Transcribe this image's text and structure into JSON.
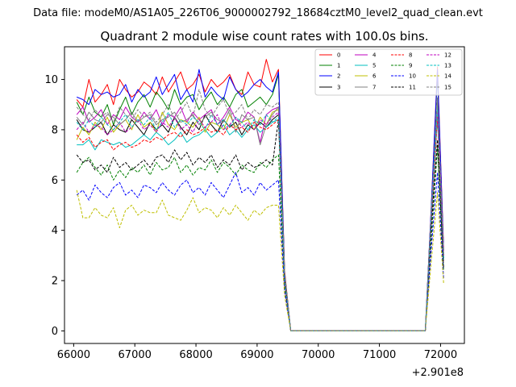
{
  "chart_data": {
    "type": "line",
    "suptitle": "Data file: modeM0/AS1A05_226T06_9000002792_18684cztM0_level2_quad_clean.evt",
    "title": "Quadrant 2 module wise count rates with 100.0s bins.",
    "xlabel": "",
    "ylabel": "",
    "x_offset_label": "+2.901e8",
    "xlim": [
      65850,
      72390
    ],
    "ylim": [
      -0.5,
      11.3
    ],
    "xticks": [
      66000,
      67000,
      68000,
      69000,
      70000,
      71000,
      72000
    ],
    "xtick_labels": [
      "66000",
      "67000",
      "68000",
      "69000",
      "70000",
      "71000",
      "72000"
    ],
    "yticks": [
      0,
      2,
      4,
      6,
      8,
      10
    ],
    "ytick_labels": [
      "0",
      "2",
      "4",
      "6",
      "8",
      "10"
    ],
    "legend_location": "upper right",
    "x": [
      66050,
      66150,
      66250,
      66350,
      66450,
      66550,
      66650,
      66750,
      66850,
      66950,
      67050,
      67150,
      67250,
      67350,
      67450,
      67550,
      67650,
      67750,
      67850,
      67950,
      68050,
      68150,
      68250,
      68350,
      68450,
      68550,
      68650,
      68750,
      68850,
      68950,
      69050,
      69150,
      69250,
      69350,
      69450,
      69550,
      69650,
      69750,
      69850,
      69950,
      70050,
      70150,
      70250,
      70350,
      70450,
      70550,
      70650,
      70750,
      70850,
      70950,
      71050,
      71150,
      71250,
      71350,
      71450,
      71550,
      71650,
      71750,
      71850,
      71950,
      72050
    ],
    "series": [
      {
        "name": "0",
        "color": "#ff0000",
        "dash": "solid",
        "values": [
          9.2,
          8.9,
          10.0,
          9.1,
          9.4,
          9.8,
          9.0,
          10.0,
          9.6,
          9.3,
          9.5,
          9.9,
          9.7,
          9.4,
          10.1,
          9.5,
          9.9,
          10.3,
          9.6,
          9.8,
          10.2,
          9.5,
          10.0,
          9.7,
          9.9,
          10.2,
          9.6,
          9.4,
          10.3,
          9.8,
          9.7,
          10.8,
          9.9,
          10.4,
          2.4,
          0,
          0,
          0,
          0,
          0,
          0,
          0,
          0,
          0,
          0,
          0,
          0,
          0,
          0,
          0,
          0,
          0,
          0,
          0,
          0,
          0,
          0,
          0,
          5.0,
          10.5,
          3.3
        ]
      },
      {
        "name": "1",
        "color": "#008000",
        "dash": "solid",
        "values": [
          9.1,
          8.6,
          9.3,
          8.7,
          8.5,
          9.0,
          8.2,
          8.8,
          9.3,
          8.6,
          9.1,
          9.4,
          8.9,
          9.5,
          9.2,
          8.8,
          9.6,
          9.0,
          9.3,
          9.4,
          8.8,
          9.2,
          9.5,
          9.0,
          9.3,
          8.9,
          9.4,
          9.6,
          8.9,
          9.1,
          9.3,
          9.0,
          9.4,
          10.2,
          2.3,
          0,
          0,
          0,
          0,
          0,
          0,
          0,
          0,
          0,
          0,
          0,
          0,
          0,
          0,
          0,
          0,
          0,
          0,
          0,
          0,
          0,
          0,
          0,
          4.9,
          10.2,
          3.2
        ]
      },
      {
        "name": "2",
        "color": "#0000ff",
        "dash": "solid",
        "values": [
          9.3,
          9.2,
          9.0,
          9.6,
          9.4,
          9.5,
          9.3,
          9.4,
          9.8,
          9.1,
          9.6,
          9.3,
          9.5,
          10.1,
          9.4,
          9.8,
          10.2,
          9.2,
          9.6,
          9.1,
          10.4,
          9.3,
          9.7,
          9.4,
          9.2,
          10.1,
          9.6,
          9.3,
          9.5,
          9.8,
          10.0,
          9.7,
          9.5,
          10.3,
          2.3,
          0,
          0,
          0,
          0,
          0,
          0,
          0,
          0,
          0,
          0,
          0,
          0,
          0,
          0,
          0,
          0,
          0,
          0,
          0,
          0,
          0,
          0,
          0,
          5.0,
          10.4,
          3.2
        ]
      },
      {
        "name": "3",
        "color": "#000000",
        "dash": "solid",
        "values": [
          8.4,
          8.0,
          7.9,
          8.1,
          8.3,
          7.8,
          8.2,
          8.0,
          7.9,
          8.4,
          8.1,
          7.8,
          8.3,
          8.0,
          8.2,
          7.9,
          8.5,
          8.1,
          7.8,
          8.3,
          8.0,
          8.6,
          8.2,
          7.9,
          8.4,
          8.1,
          8.3,
          7.8,
          8.2,
          8.0,
          8.3,
          8.1,
          8.4,
          8.6,
          2.1,
          0,
          0,
          0,
          0,
          0,
          0,
          0,
          0,
          0,
          0,
          0,
          0,
          0,
          0,
          0,
          0,
          0,
          0,
          0,
          0,
          0,
          0,
          0,
          4.5,
          8.7,
          2.9
        ]
      },
      {
        "name": "4",
        "color": "#bf00bf",
        "dash": "solid",
        "values": [
          8.6,
          8.9,
          8.3,
          8.5,
          8.8,
          8.2,
          8.6,
          8.4,
          8.9,
          8.5,
          8.3,
          8.7,
          8.4,
          8.8,
          8.2,
          8.6,
          8.5,
          8.9,
          8.3,
          8.7,
          8.4,
          8.6,
          8.8,
          8.2,
          8.5,
          8.9,
          8.4,
          8.3,
          8.7,
          8.5,
          7.5,
          8.6,
          8.8,
          8.9,
          2.2,
          0,
          0,
          0,
          0,
          0,
          0,
          0,
          0,
          0,
          0,
          0,
          0,
          0,
          0,
          0,
          0,
          0,
          0,
          0,
          0,
          0,
          0,
          0,
          4.7,
          9.0,
          3.0
        ]
      },
      {
        "name": "5",
        "color": "#00bfbf",
        "dash": "solid",
        "values": [
          7.4,
          7.4,
          7.6,
          7.2,
          7.6,
          7.5,
          7.4,
          7.5,
          7.3,
          7.4,
          7.6,
          7.8,
          7.6,
          7.9,
          7.7,
          7.4,
          7.6,
          7.9,
          7.5,
          7.7,
          7.8,
          8.0,
          7.7,
          7.9,
          8.2,
          7.8,
          8.0,
          7.7,
          8.0,
          8.2,
          7.9,
          8.1,
          8.3,
          8.4,
          2.1,
          0,
          0,
          0,
          0,
          0,
          0,
          0,
          0,
          0,
          0,
          0,
          0,
          0,
          0,
          0,
          0,
          0,
          0,
          0,
          0,
          0,
          0,
          0,
          4.4,
          8.5,
          2.8
        ]
      },
      {
        "name": "6",
        "color": "#bfbf00",
        "dash": "solid",
        "values": [
          7.6,
          8.1,
          7.8,
          8.3,
          8.0,
          8.5,
          7.9,
          8.2,
          8.4,
          8.0,
          8.6,
          8.1,
          8.3,
          7.9,
          8.7,
          8.2,
          8.0,
          8.4,
          8.3,
          8.1,
          8.5,
          7.9,
          8.3,
          8.2,
          8.0,
          8.6,
          8.1,
          8.3,
          8.4,
          8.0,
          8.5,
          8.2,
          8.7,
          8.8,
          2.2,
          0,
          0,
          0,
          0,
          0,
          0,
          0,
          0,
          0,
          0,
          0,
          0,
          0,
          0,
          0,
          0,
          0,
          0,
          0,
          0,
          0,
          0,
          0,
          4.6,
          8.9,
          3.0
        ]
      },
      {
        "name": "7",
        "color": "#808080",
        "dash": "solid",
        "values": [
          8.5,
          8.2,
          8.7,
          8.4,
          8.3,
          8.6,
          8.5,
          8.2,
          8.4,
          8.7,
          8.3,
          8.5,
          8.6,
          8.2,
          8.4,
          8.5,
          8.7,
          8.3,
          8.4,
          8.6,
          8.2,
          8.5,
          8.7,
          8.4,
          8.3,
          8.8,
          7.9,
          8.6,
          8.4,
          8.5,
          7.4,
          8.2,
          8.6,
          8.9,
          2.2,
          0,
          0,
          0,
          0,
          0,
          0,
          0,
          0,
          0,
          0,
          0,
          0,
          0,
          0,
          0,
          0,
          0,
          0,
          0,
          0,
          0,
          0,
          0,
          4.7,
          9.2,
          3.0
        ]
      },
      {
        "name": "8",
        "color": "#ff0000",
        "dash": "dashed",
        "values": [
          7.8,
          7.5,
          7.7,
          7.3,
          7.5,
          7.6,
          7.2,
          7.4,
          7.5,
          7.3,
          7.4,
          7.6,
          7.5,
          7.7,
          7.6,
          7.8,
          7.9,
          7.7,
          8.0,
          7.8,
          7.9,
          8.1,
          7.9,
          8.0,
          7.8,
          8.2,
          8.0,
          8.1,
          7.9,
          8.3,
          8.1,
          8.0,
          8.2,
          8.4,
          2.0,
          0,
          0,
          0,
          0,
          0,
          0,
          0,
          0,
          0,
          0,
          0,
          0,
          0,
          0,
          0,
          0,
          0,
          0,
          0,
          0,
          0,
          0,
          0,
          4.4,
          8.5,
          2.8
        ]
      },
      {
        "name": "9",
        "color": "#008000",
        "dash": "dashed",
        "values": [
          6.3,
          6.7,
          6.9,
          6.5,
          6.2,
          6.6,
          6.0,
          6.4,
          6.1,
          6.5,
          6.3,
          6.6,
          6.2,
          6.7,
          6.4,
          6.5,
          6.9,
          6.3,
          6.6,
          6.2,
          6.5,
          6.4,
          6.8,
          6.3,
          6.7,
          6.5,
          6.2,
          6.6,
          6.4,
          6.3,
          6.7,
          6.5,
          6.8,
          7.0,
          1.8,
          0,
          0,
          0,
          0,
          0,
          0,
          0,
          0,
          0,
          0,
          0,
          0,
          0,
          0,
          0,
          0,
          0,
          0,
          0,
          0,
          0,
          0,
          0,
          3.7,
          7.3,
          2.4
        ]
      },
      {
        "name": "10",
        "color": "#0000ff",
        "dash": "dashed",
        "values": [
          5.4,
          5.6,
          5.2,
          5.8,
          5.5,
          5.3,
          5.7,
          5.9,
          5.4,
          5.6,
          5.3,
          5.8,
          5.7,
          5.5,
          5.9,
          5.6,
          5.4,
          5.8,
          6.0,
          5.5,
          5.7,
          5.4,
          5.9,
          5.6,
          5.3,
          5.8,
          6.3,
          5.5,
          5.7,
          5.4,
          5.9,
          5.6,
          5.8,
          6.0,
          1.6,
          0,
          0,
          0,
          0,
          0,
          0,
          0,
          0,
          0,
          0,
          0,
          0,
          0,
          0,
          0,
          0,
          0,
          0,
          0,
          0,
          0,
          0,
          0,
          3.3,
          6.3,
          2.1
        ]
      },
      {
        "name": "11",
        "color": "#000000",
        "dash": "dashed",
        "values": [
          7.0,
          6.7,
          6.8,
          6.4,
          6.6,
          6.3,
          6.9,
          6.5,
          6.7,
          6.4,
          6.6,
          6.8,
          6.5,
          6.9,
          7.0,
          6.7,
          7.2,
          6.8,
          7.1,
          6.6,
          6.9,
          6.7,
          7.0,
          6.5,
          6.8,
          6.6,
          7.0,
          6.4,
          6.7,
          6.5,
          6.6,
          6.8,
          6.6,
          8.4,
          2.0,
          0,
          0,
          0,
          0,
          0,
          0,
          0,
          0,
          0,
          0,
          0,
          0,
          0,
          0,
          0,
          0,
          0,
          0,
          0,
          0,
          0,
          0,
          0,
          4.1,
          7.6,
          2.5
        ]
      },
      {
        "name": "12",
        "color": "#bf00bf",
        "dash": "dashed",
        "values": [
          8.0,
          8.3,
          7.9,
          8.2,
          8.1,
          7.8,
          8.0,
          8.3,
          7.9,
          8.1,
          8.4,
          8.0,
          8.2,
          7.9,
          8.3,
          8.1,
          8.5,
          8.0,
          8.2,
          7.9,
          8.4,
          8.1,
          8.3,
          8.6,
          8.0,
          8.2,
          8.5,
          8.1,
          8.3,
          8.0,
          8.4,
          8.2,
          8.5,
          8.7,
          2.1,
          0,
          0,
          0,
          0,
          0,
          0,
          0,
          0,
          0,
          0,
          0,
          0,
          0,
          0,
          0,
          0,
          0,
          0,
          0,
          0,
          0,
          0,
          0,
          4.5,
          8.8,
          2.9
        ]
      },
      {
        "name": "13",
        "color": "#00bfbf",
        "dash": "dashed",
        "values": [
          8.3,
          8.0,
          8.4,
          8.1,
          8.5,
          8.2,
          8.0,
          8.3,
          8.6,
          8.1,
          8.4,
          8.2,
          8.5,
          8.0,
          8.3,
          8.7,
          8.1,
          8.4,
          8.2,
          8.5,
          8.3,
          8.0,
          8.6,
          8.2,
          8.4,
          8.1,
          8.5,
          8.3,
          8.0,
          8.4,
          8.2,
          8.6,
          8.3,
          8.5,
          2.1,
          0,
          0,
          0,
          0,
          0,
          0,
          0,
          0,
          0,
          0,
          0,
          0,
          0,
          0,
          0,
          0,
          0,
          0,
          0,
          0,
          0,
          0,
          0,
          4.6,
          8.9,
          2.9
        ]
      },
      {
        "name": "14",
        "color": "#bfbf00",
        "dash": "dashed",
        "values": [
          5.6,
          4.5,
          4.5,
          4.9,
          4.6,
          4.5,
          4.9,
          4.1,
          4.8,
          5.0,
          4.6,
          4.8,
          4.7,
          4.7,
          5.2,
          4.6,
          4.5,
          4.4,
          4.8,
          5.3,
          4.7,
          4.9,
          4.8,
          4.5,
          4.9,
          4.6,
          5.0,
          4.7,
          4.4,
          4.8,
          4.6,
          4.9,
          5.0,
          5.0,
          1.4,
          0,
          0,
          0,
          0,
          0,
          0,
          0,
          0,
          0,
          0,
          0,
          0,
          0,
          0,
          0,
          0,
          0,
          0,
          0,
          0,
          0,
          0,
          0,
          2.8,
          5.5,
          1.9
        ]
      },
      {
        "name": "15",
        "color": "#808080",
        "dash": "dashed",
        "values": [
          8.9,
          8.6,
          8.4,
          8.8,
          8.5,
          8.7,
          8.3,
          8.9,
          8.6,
          8.4,
          8.8,
          8.5,
          8.7,
          8.3,
          8.6,
          9.0,
          8.4,
          8.7,
          9.1,
          8.5,
          9.6,
          8.8,
          8.5,
          8.9,
          9.2,
          8.6,
          8.7,
          9.0,
          8.4,
          8.8,
          8.6,
          9.0,
          8.9,
          9.1,
          2.3,
          0,
          0,
          0,
          0,
          0,
          0,
          0,
          0,
          0,
          0,
          0,
          0,
          0,
          0,
          0,
          0,
          0,
          0,
          0,
          0,
          0,
          0,
          0,
          4.8,
          9.3,
          3.1
        ]
      }
    ]
  }
}
